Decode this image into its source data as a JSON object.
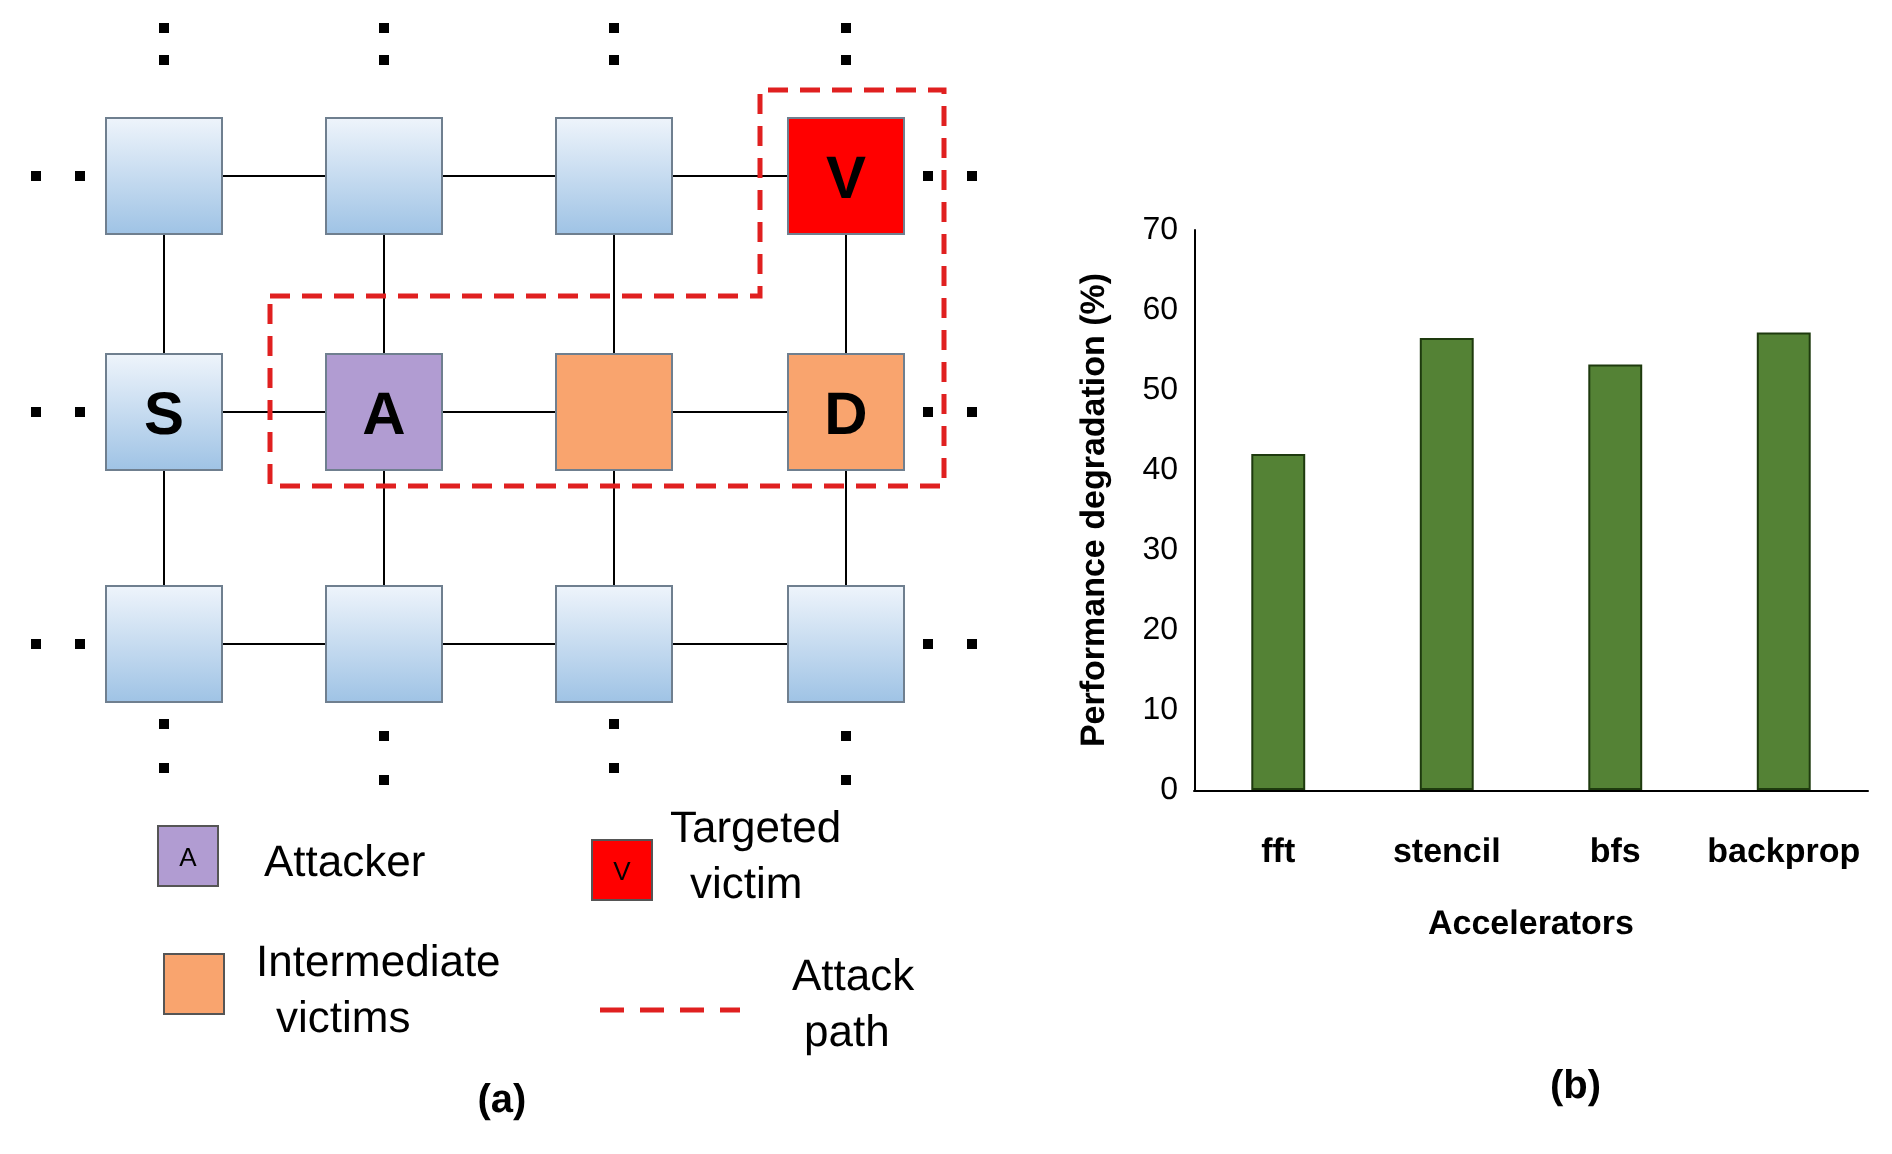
{
  "chart_data": [
    {
      "type": "other",
      "title": "(a)",
      "annotations": [
        "S",
        "A",
        "V",
        "D",
        "Attacker",
        "Targeted victim",
        "Intermediate victims",
        "Attack path"
      ]
    },
    {
      "type": "bar",
      "title": "(b)",
      "xlabel": "Accelerators",
      "ylabel": "Performance degradation (%)",
      "categories": [
        "fft",
        "stencil",
        "bfs",
        "backprop"
      ],
      "values": [
        42,
        56.5,
        53.2,
        57.2
      ],
      "color": "#548235",
      "ylim": [
        0,
        70
      ],
      "yticks": [
        0,
        10,
        20,
        30,
        40,
        50,
        60,
        70
      ],
      "grid": false
    }
  ]
}
